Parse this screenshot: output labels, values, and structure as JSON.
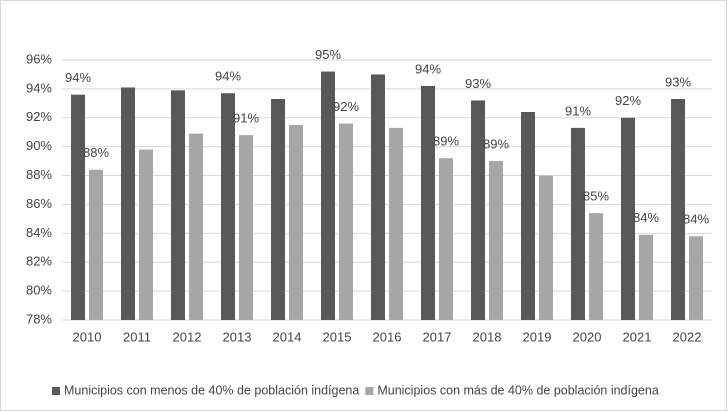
{
  "chart_data": {
    "type": "bar",
    "categories": [
      "2010",
      "2011",
      "2012",
      "2013",
      "2014",
      "2015",
      "2016",
      "2017",
      "2018",
      "2019",
      "2020",
      "2021",
      "2022"
    ],
    "series": [
      {
        "name": "Municipios con menos de 40% de población indígena",
        "color": "#595959",
        "values": [
          93.6,
          94.1,
          93.9,
          93.7,
          93.3,
          95.2,
          95.0,
          94.2,
          93.2,
          92.4,
          91.3,
          92.0,
          93.3
        ],
        "value_labels": [
          "94%",
          null,
          null,
          "94%",
          null,
          "95%",
          null,
          "94%",
          "93%",
          null,
          "91%",
          "92%",
          "93%"
        ]
      },
      {
        "name": "Municipios con más de 40% de población indígena",
        "color": "#a6a6a6",
        "values": [
          88.4,
          89.8,
          90.9,
          90.8,
          91.5,
          91.6,
          91.3,
          89.2,
          89.0,
          88.0,
          85.4,
          83.9,
          83.8
        ],
        "value_labels": [
          "88%",
          null,
          null,
          "91%",
          null,
          "92%",
          null,
          "89%",
          "89%",
          null,
          "85%",
          "84%",
          "84%"
        ]
      }
    ],
    "ylim": [
      78,
      96
    ],
    "yticks": [
      {
        "value": 78,
        "label": "78%"
      },
      {
        "value": 80,
        "label": "80%"
      },
      {
        "value": 82,
        "label": "82%"
      },
      {
        "value": 84,
        "label": "84%"
      },
      {
        "value": 86,
        "label": "86%"
      },
      {
        "value": 88,
        "label": "88%"
      },
      {
        "value": 90,
        "label": "90%"
      },
      {
        "value": 92,
        "label": "92%"
      },
      {
        "value": 94,
        "label": "94%"
      },
      {
        "value": 96,
        "label": "96%"
      }
    ],
    "grid": true,
    "legend": "bottom"
  }
}
